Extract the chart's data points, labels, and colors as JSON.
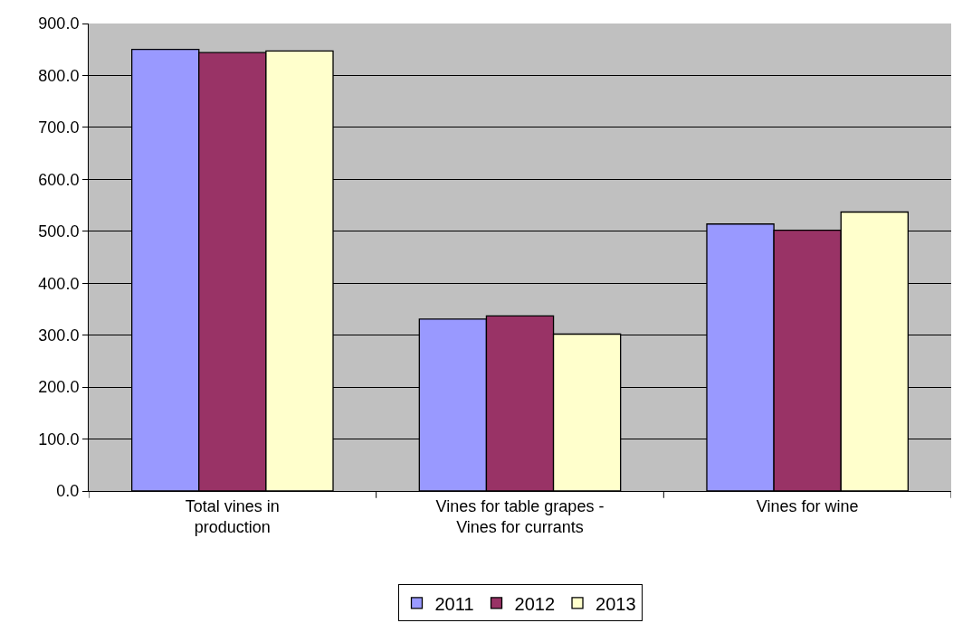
{
  "chart_data": {
    "type": "bar",
    "categories": [
      "Total vines in production",
      "Vines for table grapes - Vines for currants",
      "Vines for wine"
    ],
    "series": [
      {
        "name": "2011",
        "color": "#9999ff",
        "values": [
          850,
          331,
          514
        ]
      },
      {
        "name": "2012",
        "color": "#993366",
        "values": [
          844,
          337,
          502
        ]
      },
      {
        "name": "2013",
        "color": "#ffffcc",
        "values": [
          847,
          302,
          537
        ]
      }
    ],
    "ylim": [
      0,
      900
    ],
    "yticks": [
      {
        "value": 0,
        "label": "0.0"
      },
      {
        "value": 100,
        "label": "100.0"
      },
      {
        "value": 200,
        "label": "200.0"
      },
      {
        "value": 300,
        "label": "300.0"
      },
      {
        "value": 400,
        "label": "400.0"
      },
      {
        "value": 500,
        "label": "500.0"
      },
      {
        "value": 600,
        "label": "600.0"
      },
      {
        "value": 700,
        "label": "700.0"
      },
      {
        "value": 800,
        "label": "800.0"
      },
      {
        "value": 900,
        "label": "900.0"
      }
    ],
    "grid": "y",
    "legend": "bottom"
  }
}
